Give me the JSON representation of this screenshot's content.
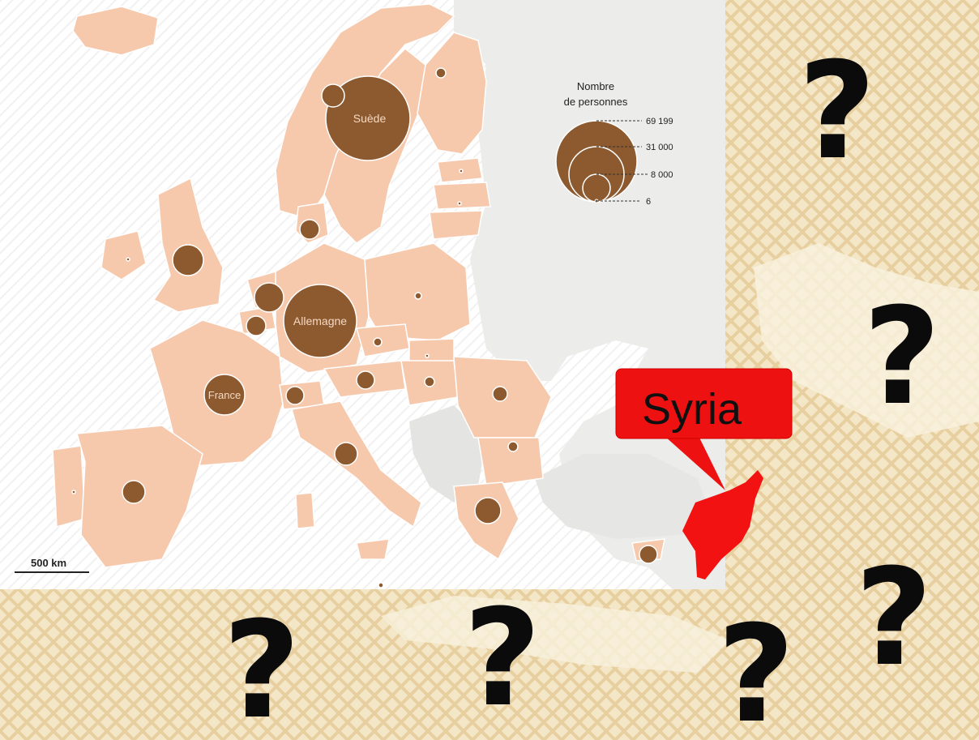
{
  "map": {
    "scale_label": "500 km",
    "countries": [
      {
        "name": "Suède",
        "persons": 69199
      },
      {
        "name": "Allemagne",
        "persons": 60000
      },
      {
        "name": "France",
        "persons": 14000
      }
    ]
  },
  "legend": {
    "title_line1": "Nombre",
    "title_line2": "de personnes",
    "values": [
      "69 199",
      "31 000",
      "8 000",
      "6"
    ]
  },
  "overlay": {
    "callout_label": "Syria",
    "question_mark": "?",
    "highlight_color": "#f21212",
    "bubble_color": "#8c5a2e",
    "land_color": "#f6c9ad"
  }
}
